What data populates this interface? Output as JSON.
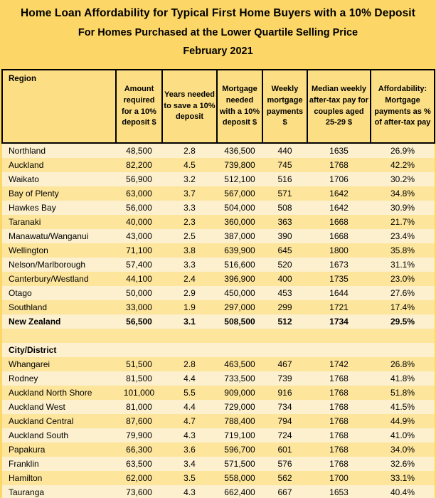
{
  "title": {
    "line1": "Home Loan Affordability for Typical First Home Buyers with a 10% Deposit",
    "line2": "For Homes Purchased at the Lower Quartile Selling Price",
    "line3": "February 2021"
  },
  "colors": {
    "page_background": "#FCD666",
    "header_background": "#FCDF84",
    "row_gold": "#FDE59B",
    "row_cream": "#FCF0CE",
    "border": "#000000",
    "text": "#000000"
  },
  "chart_data": {
    "type": "table",
    "title": "Home Loan Affordability for Typical First Home Buyers with a 10% Deposit — For Homes Purchased at the Lower Quartile Selling Price — February 2021",
    "columns": [
      "Region",
      "Amount required for a 10% deposit $",
      "Years needed to save a 10% deposit",
      "Mortgage needed with a 10% deposit $",
      "Weekly mortgage payments $",
      "Median weekly after-tax pay for couples aged 25-29 $",
      "Affordability: Mortgage payments as % of after-tax pay"
    ],
    "region_rows": [
      {
        "name": "Northland",
        "values": [
          "48,500",
          "2.8",
          "436,500",
          "440",
          "1635",
          "26.9%"
        ],
        "bold": false
      },
      {
        "name": "Auckland",
        "values": [
          "82,200",
          "4.5",
          "739,800",
          "745",
          "1768",
          "42.2%"
        ],
        "bold": false
      },
      {
        "name": "Waikato",
        "values": [
          "56,900",
          "3.2",
          "512,100",
          "516",
          "1706",
          "30.2%"
        ],
        "bold": false
      },
      {
        "name": "Bay of Plenty",
        "values": [
          "63,000",
          "3.7",
          "567,000",
          "571",
          "1642",
          "34.8%"
        ],
        "bold": false
      },
      {
        "name": "Hawkes Bay",
        "values": [
          "56,000",
          "3.3",
          "504,000",
          "508",
          "1642",
          "30.9%"
        ],
        "bold": false
      },
      {
        "name": "Taranaki",
        "values": [
          "40,000",
          "2.3",
          "360,000",
          "363",
          "1668",
          "21.7%"
        ],
        "bold": false
      },
      {
        "name": "Manawatu/Wanganui",
        "values": [
          "43,000",
          "2.5",
          "387,000",
          "390",
          "1668",
          "23.4%"
        ],
        "bold": false
      },
      {
        "name": "Wellington",
        "values": [
          "71,100",
          "3.8",
          "639,900",
          "645",
          "1800",
          "35.8%"
        ],
        "bold": false
      },
      {
        "name": "Nelson/Marlborough",
        "values": [
          "57,400",
          "3.3",
          "516,600",
          "520",
          "1673",
          "31.1%"
        ],
        "bold": false
      },
      {
        "name": "Canterbury/Westland",
        "values": [
          "44,100",
          "2.4",
          "396,900",
          "400",
          "1735",
          "23.0%"
        ],
        "bold": false
      },
      {
        "name": "Otago",
        "values": [
          "50,000",
          "2.9",
          "450,000",
          "453",
          "1644",
          "27.6%"
        ],
        "bold": false
      },
      {
        "name": "Southland",
        "values": [
          "33,000",
          "1.9",
          "297,000",
          "299",
          "1721",
          "17.4%"
        ],
        "bold": false
      },
      {
        "name": "New Zealand",
        "values": [
          "56,500",
          "3.1",
          "508,500",
          "512",
          "1734",
          "29.5%"
        ],
        "bold": true
      }
    ],
    "city_section_label": "City/District",
    "city_rows": [
      {
        "name": "Whangarei",
        "values": [
          "51,500",
          "2.8",
          "463,500",
          "467",
          "1742",
          "26.8%"
        ],
        "bold": false
      },
      {
        "name": "Rodney",
        "values": [
          "81,500",
          "4.4",
          "733,500",
          "739",
          "1768",
          "41.8%"
        ],
        "bold": false
      },
      {
        "name": "Auckland North Shore",
        "values": [
          "101,000",
          "5.5",
          "909,000",
          "916",
          "1768",
          "51.8%"
        ],
        "bold": false
      },
      {
        "name": "Auckland West",
        "values": [
          "81,000",
          "4.4",
          "729,000",
          "734",
          "1768",
          "41.5%"
        ],
        "bold": false
      },
      {
        "name": "Auckland Central",
        "values": [
          "87,600",
          "4.7",
          "788,400",
          "794",
          "1768",
          "44.9%"
        ],
        "bold": false
      },
      {
        "name": "Auckland South",
        "values": [
          "79,900",
          "4.3",
          "719,100",
          "724",
          "1768",
          "41.0%"
        ],
        "bold": false
      },
      {
        "name": "Papakura",
        "values": [
          "66,300",
          "3.6",
          "596,700",
          "601",
          "1768",
          "34.0%"
        ],
        "bold": false
      },
      {
        "name": "Franklin",
        "values": [
          "63,500",
          "3.4",
          "571,500",
          "576",
          "1768",
          "32.6%"
        ],
        "bold": false
      },
      {
        "name": "Hamilton",
        "values": [
          "62,000",
          "3.5",
          "558,000",
          "562",
          "1700",
          "33.1%"
        ],
        "bold": false
      },
      {
        "name": "Tauranga",
        "values": [
          "73,600",
          "4.3",
          "662,400",
          "667",
          "1653",
          "40.4%"
        ],
        "bold": false
      }
    ]
  }
}
